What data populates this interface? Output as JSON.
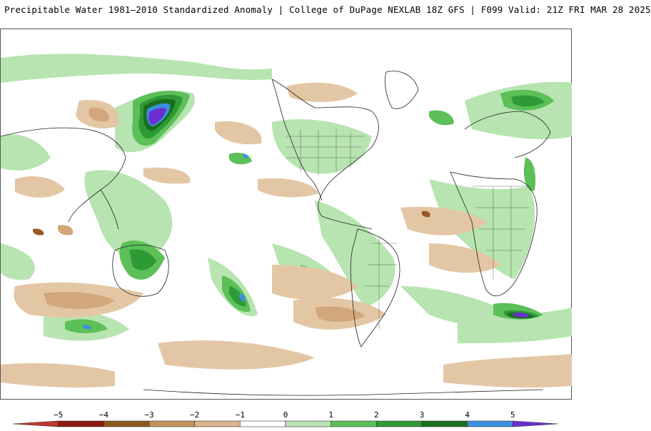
{
  "header": {
    "title": "Precipitable Water 1981–2010 Standardized Anomaly | College of DuPage NEXLAB  18Z GFS | F099 Valid: 21Z FRI MAR 28 2025"
  },
  "legend": {
    "ticks": [
      "−5",
      "−4",
      "−3",
      "−2",
      "−1",
      "0",
      "1",
      "2",
      "3",
      "4",
      "5"
    ],
    "colors": [
      "#c0362c",
      "#8b1a10",
      "#8b5a1a",
      "#c4935a",
      "#d9b48d",
      "#ffffff",
      "#b7e4b0",
      "#5cbf58",
      "#2e9a35",
      "#1a6e1e",
      "#3b8fe0",
      "#6b2fd0"
    ]
  },
  "map": {
    "projection": "global cylindrical",
    "anomaly_colors": {
      "pos_1": "#b7e4b0",
      "pos_2": "#5cbf58",
      "pos_3": "#2e9a35",
      "pos_4": "#1a6e1e",
      "pos_5": "#3b8fe0",
      "pos_6": "#6b2fd0",
      "neg_1": "#e3c7a5",
      "neg_2": "#d2a77b",
      "neg_3": "#9a5a28"
    }
  }
}
